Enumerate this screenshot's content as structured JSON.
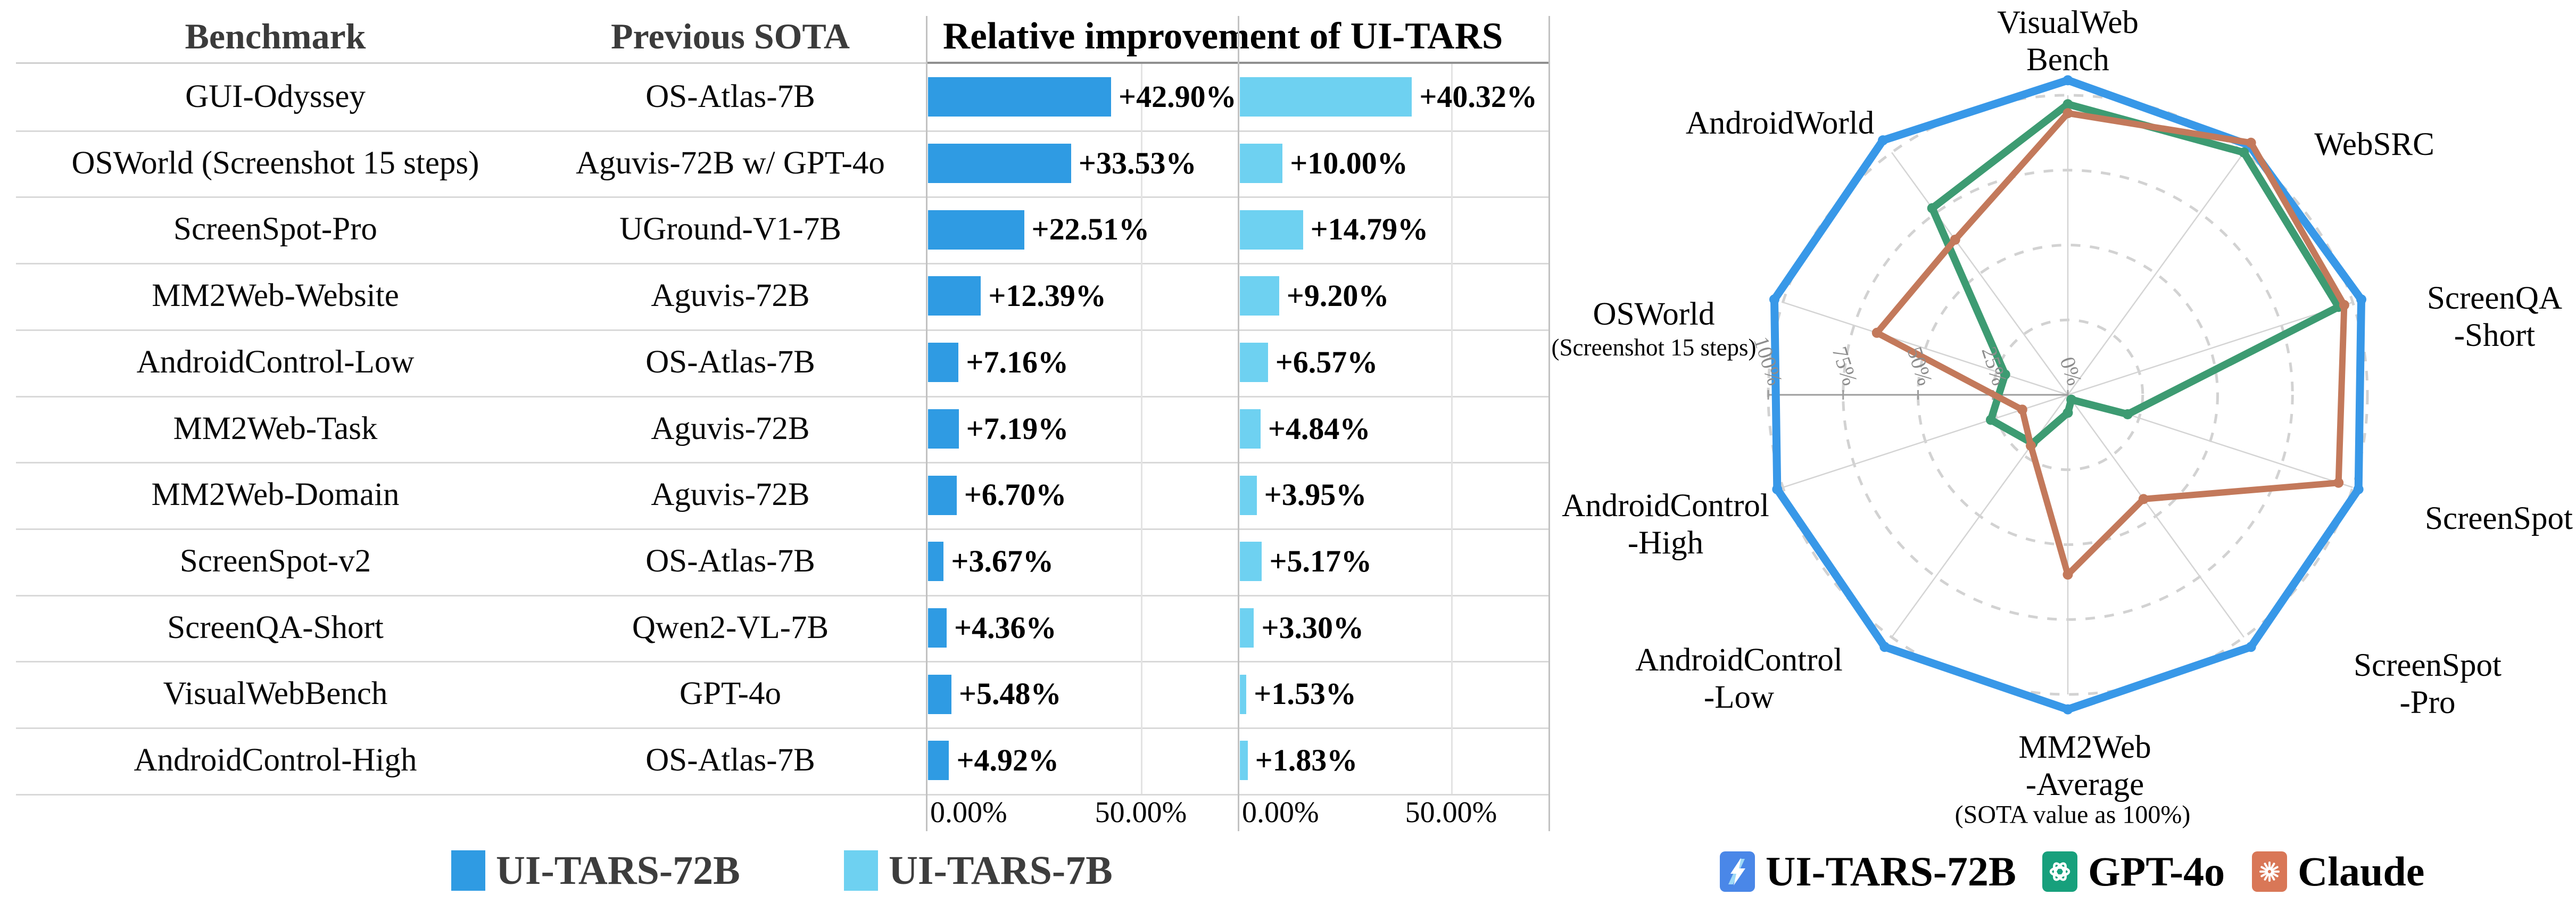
{
  "table": {
    "headers": {
      "benchmark": "Benchmark",
      "previous_sota": "Previous SOTA",
      "improvement": "Relative improvement of UI-TARS"
    }
  },
  "chart_data": [
    {
      "type": "bar",
      "orientation": "horizontal",
      "title": "Relative improvement of UI-TARS",
      "categories": [
        "GUI-Odyssey",
        "OSWorld (Screenshot 15 steps)",
        "ScreenSpot-Pro",
        "MM2Web-Website",
        "AndroidControl-Low",
        "MM2Web-Task",
        "MM2Web-Domain",
        "ScreenSpot-v2",
        "ScreenQA-Short",
        "VisualWebBench",
        "AndroidControl-High"
      ],
      "previous_sota": [
        "OS-Atlas-7B",
        "Aguvis-72B w/ GPT-4o",
        "UGround-V1-7B",
        "Aguvis-72B",
        "OS-Atlas-7B",
        "Aguvis-72B",
        "Aguvis-72B",
        "OS-Atlas-7B",
        "Qwen2-VL-7B",
        "GPT-4o",
        "OS-Atlas-7B"
      ],
      "series": [
        {
          "name": "UI-TARS-72B",
          "color": "#2F9BE3",
          "values": [
            42.9,
            33.53,
            22.51,
            12.39,
            7.16,
            7.19,
            6.7,
            3.67,
            4.36,
            5.48,
            4.92
          ]
        },
        {
          "name": "UI-TARS-7B",
          "color": "#6ED1F1",
          "values": [
            40.32,
            10.0,
            14.79,
            9.2,
            6.57,
            4.84,
            3.95,
            5.17,
            3.3,
            1.53,
            1.83
          ]
        }
      ],
      "xlim": [
        0,
        50
      ],
      "x_ticks": [
        "0.00%",
        "50.00%"
      ],
      "grid": true,
      "legend_position": "bottom"
    },
    {
      "type": "radar",
      "categories": [
        "VisualWebBench",
        "WebSRC",
        "ScreenQA-Short",
        "ScreenSpot",
        "ScreenSpot-Pro",
        "MM2Web-Average",
        "AndroidControl-Low",
        "AndroidControl-High",
        "OSWorld (Screenshot 15 steps)",
        "AndroidWorld"
      ],
      "category_lines": [
        [
          "VisualWeb",
          "Bench"
        ],
        [
          "WebSRC"
        ],
        [
          "ScreenQA",
          "-Short"
        ],
        [
          "ScreenSpot"
        ],
        [
          "ScreenSpot",
          "-Pro"
        ],
        [
          "MM2Web",
          "-Average"
        ],
        [
          "AndroidControl",
          "-Low"
        ],
        [
          "AndroidControl",
          "-High"
        ],
        [
          "OSWorld",
          "(Screenshot 15 steps)"
        ],
        [
          "AndroidWorld"
        ]
      ],
      "series": [
        {
          "name": "UI-TARS-72B",
          "color": "#3898E8",
          "values": [
            105,
            103,
            103,
            102,
            104,
            105,
            104,
            102,
            103,
            105
          ]
        },
        {
          "name": "GPT-4o",
          "color": "#3D9B72",
          "values": [
            97,
            100,
            95,
            21,
            2,
            6,
            20,
            27,
            22,
            77
          ]
        },
        {
          "name": "Claude",
          "color": "#C3795B",
          "values": [
            94,
            104,
            97,
            95,
            43,
            60,
            21,
            16,
            67,
            64
          ]
        }
      ],
      "radial_ticks": [
        "100%",
        "75%",
        "50%",
        "25%",
        "0%"
      ],
      "rmax": 100,
      "grid": "dashed-circles",
      "note": "(SOTA value as 100%)",
      "legend_position": "bottom"
    }
  ],
  "radar_legend": [
    {
      "label": "UI-TARS-72B",
      "icon": "uitars-logo",
      "icon_bg": "#4A87E8"
    },
    {
      "label": "GPT-4o",
      "icon": "openai-logo",
      "icon_bg": "#17A07C"
    },
    {
      "label": "Claude",
      "icon": "claude-logo",
      "icon_bg": "#D97757"
    }
  ]
}
